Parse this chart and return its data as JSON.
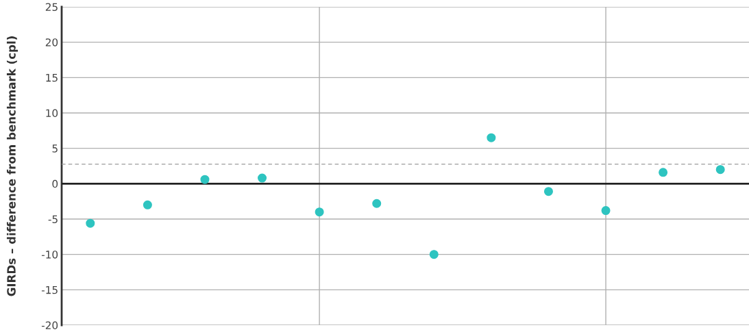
{
  "chart_data": {
    "type": "scatter",
    "ylabel": "GIRDs – difference from benchmark (cpl)",
    "categories": [
      null,
      null,
      null,
      null,
      null,
      null,
      null,
      null,
      null,
      null,
      null,
      null
    ],
    "series": [
      {
        "color": "#2ec4c0",
        "values": [
          -5.6,
          -3.0,
          0.6,
          0.8,
          -4.0,
          -2.8,
          -10.0,
          6.5,
          -1.1,
          -3.8,
          1.6,
          2.0
        ]
      }
    ],
    "ylim": [
      -20,
      25
    ],
    "yticks": [
      -20,
      -15,
      -10,
      -5,
      0,
      5,
      10,
      15,
      20,
      25
    ],
    "tick_labels": "y",
    "grid": true,
    "marker": "circle",
    "ref_lines": [
      {
        "axis": "y",
        "value": 0,
        "color": "#222222",
        "line_style": "solid"
      },
      {
        "axis": "y",
        "value": 2.75,
        "color": "#999999",
        "line_style": "dashed"
      }
    ]
  }
}
